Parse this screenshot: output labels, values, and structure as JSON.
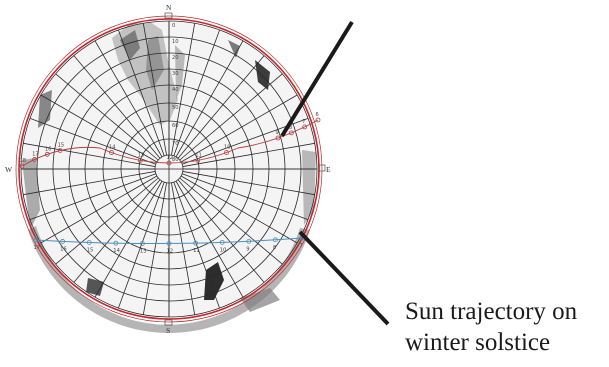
{
  "compass": {
    "north": "N",
    "south": "S",
    "east": "E",
    "west": "W"
  },
  "elevation_labels": [
    "0",
    "10",
    "20",
    "30",
    "40",
    "50",
    "60",
    "70",
    "80"
  ],
  "winter_hour_labels": [
    "17",
    "16",
    "15",
    "14",
    "13",
    "12",
    "11",
    "10",
    "9",
    "8",
    "7"
  ],
  "summer_hour_labels": [
    "18",
    "17",
    "16",
    "15",
    "14",
    "13",
    "12",
    "11",
    "10",
    "9",
    "8",
    "7",
    "6"
  ],
  "caption": {
    "line1": "Sun trajectory on",
    "line2": "winter solstice"
  },
  "colors": {
    "outer_ring": "#c0282c",
    "summer_path": "#b54040",
    "winter_path": "#4f8fb8",
    "grid": "#2a2a2a",
    "pointer": "#1a1a1a"
  }
}
